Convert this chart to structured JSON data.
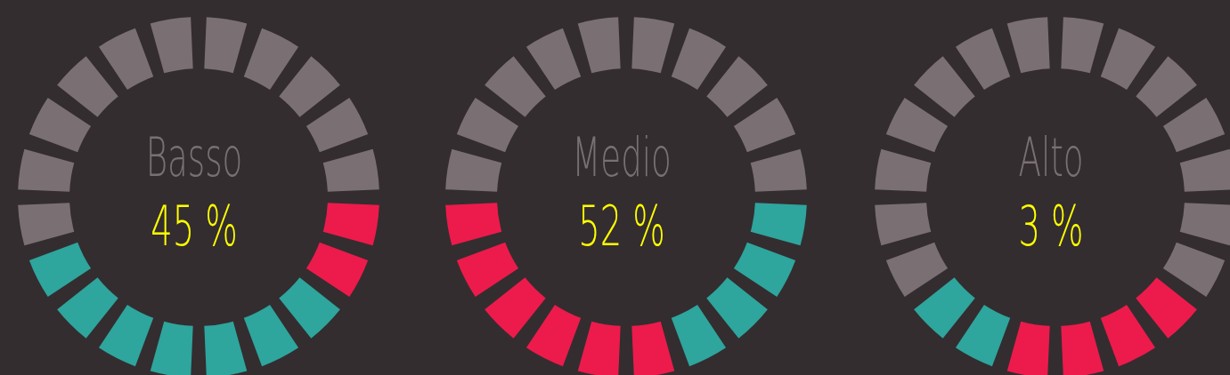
{
  "chart_data": [
    {
      "type": "donut",
      "title": "Basso",
      "annotations": [
        "45 %"
      ],
      "categories": [
        null,
        null,
        null,
        null,
        null,
        null,
        null,
        null,
        null,
        null,
        null,
        null,
        null,
        null,
        null,
        null,
        null,
        null,
        null,
        null
      ],
      "values": [
        5,
        5,
        5,
        5,
        5,
        5,
        5,
        5,
        5,
        5,
        5,
        5,
        5,
        5,
        5,
        5,
        5,
        5,
        5,
        5
      ],
      "colors": [
        "#7a7073",
        "#7a7073",
        "#7a7073",
        "#7a7073",
        "#7a7073",
        "#ec1b4b",
        "#ec1b4b",
        "#2ea59d",
        "#2ea59d",
        "#2ea59d",
        "#2ea59d",
        "#2ea59d",
        "#2ea59d",
        "#2ea59d",
        "#7a7073",
        "#7a7073",
        "#7a7073",
        "#7a7073",
        "#7a7073",
        "#7a7073"
      ]
    },
    {
      "type": "donut",
      "title": "Medio",
      "annotations": [
        "52 %"
      ],
      "categories": [
        null,
        null,
        null,
        null,
        null,
        null,
        null,
        null,
        null,
        null,
        null,
        null,
        null,
        null,
        null,
        null,
        null,
        null,
        null,
        null
      ],
      "values": [
        5,
        5,
        5,
        5,
        5,
        5,
        5,
        5,
        5,
        5,
        5,
        5,
        5,
        5,
        5,
        5,
        5,
        5,
        5,
        5
      ],
      "colors": [
        "#7a7073",
        "#7a7073",
        "#7a7073",
        "#7a7073",
        "#7a7073",
        "#2ea59d",
        "#2ea59d",
        "#2ea59d",
        "#2ea59d",
        "#ec1b4b",
        "#ec1b4b",
        "#ec1b4b",
        "#ec1b4b",
        "#ec1b4b",
        "#ec1b4b",
        "#7a7073",
        "#7a7073",
        "#7a7073",
        "#7a7073",
        "#7a7073"
      ]
    },
    {
      "type": "donut",
      "title": "Alto",
      "annotations": [
        "3 %"
      ],
      "categories": [
        null,
        null,
        null,
        null,
        null,
        null,
        null,
        null,
        null,
        null,
        null,
        null,
        null,
        null,
        null,
        null,
        null,
        null,
        null,
        null
      ],
      "values": [
        5,
        5,
        5,
        5,
        5,
        5,
        5,
        5,
        5,
        5,
        5,
        5,
        5,
        5,
        5,
        5,
        5,
        5,
        5,
        5
      ],
      "colors": [
        "#7a7073",
        "#7a7073",
        "#7a7073",
        "#7a7073",
        "#7a7073",
        "#7a7073",
        "#7a7073",
        "#ec1b4b",
        "#ec1b4b",
        "#ec1b4b",
        "#ec1b4b",
        "#2ea59d",
        "#2ea59d",
        "#7a7073",
        "#7a7073",
        "#7a7073",
        "#7a7073",
        "#7a7073",
        "#7a7073",
        "#7a7073"
      ]
    }
  ]
}
